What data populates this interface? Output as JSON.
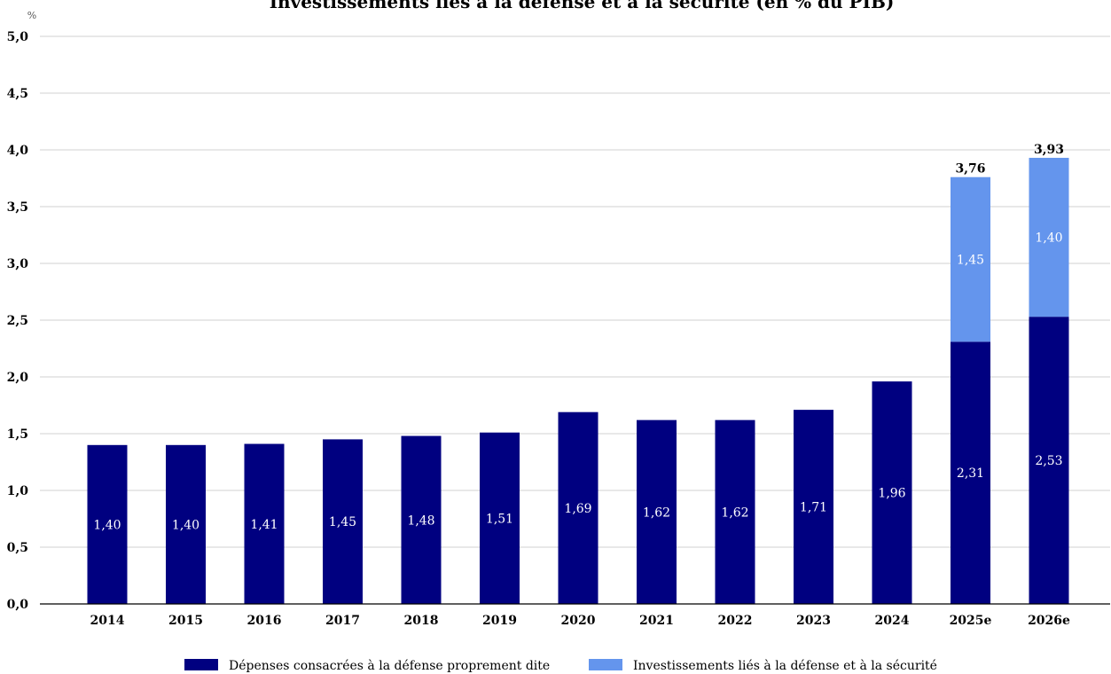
{
  "chart_data": {
    "type": "bar",
    "stacked": true,
    "title": "Investissements liés à la défense et à la sécurité (en % du PIB)",
    "ylabel": "%",
    "xlabel": "",
    "ylim": [
      0,
      5
    ],
    "yticks": [
      "0,0",
      "0,5",
      "1,0",
      "1,5",
      "2,0",
      "2,5",
      "3,0",
      "3,5",
      "4,0",
      "4,5",
      "5,0"
    ],
    "ytick_values": [
      0,
      0.5,
      1,
      1.5,
      2,
      2.5,
      3,
      3.5,
      4,
      4.5,
      5
    ],
    "grid": true,
    "legend_position": "bottom",
    "categories": [
      "2014",
      "2015",
      "2016",
      "2017",
      "2018",
      "2019",
      "2020",
      "2021",
      "2022",
      "2023",
      "2024",
      "2025e",
      "2026e"
    ],
    "series": [
      {
        "name": "Dépenses consacrées à la défense proprement dite",
        "color": "#000080",
        "values": [
          1.4,
          1.4,
          1.41,
          1.45,
          1.48,
          1.51,
          1.69,
          1.62,
          1.62,
          1.71,
          1.96,
          2.31,
          2.53
        ],
        "labels": [
          "1,40",
          "1,40",
          "1,41",
          "1,45",
          "1,48",
          "1,51",
          "1,69",
          "1,62",
          "1,62",
          "1,71",
          "1,96",
          "2,31",
          "2,53"
        ]
      },
      {
        "name": "Investissements liés à la défense et à la sécurité",
        "color": "#6495ED",
        "values": [
          null,
          null,
          null,
          null,
          null,
          null,
          null,
          null,
          null,
          null,
          null,
          1.45,
          1.4
        ],
        "labels": [
          "",
          "",
          "",
          "",
          "",
          "",
          "",
          "",
          "",
          "",
          "",
          "1,45",
          "1,40"
        ]
      }
    ],
    "totals": [
      "",
      "",
      "",
      "",
      "",
      "",
      "",
      "",
      "",
      "",
      "",
      "3,76",
      "3,93"
    ],
    "total_values": [
      null,
      null,
      null,
      null,
      null,
      null,
      null,
      null,
      null,
      null,
      null,
      3.76,
      3.93
    ]
  }
}
